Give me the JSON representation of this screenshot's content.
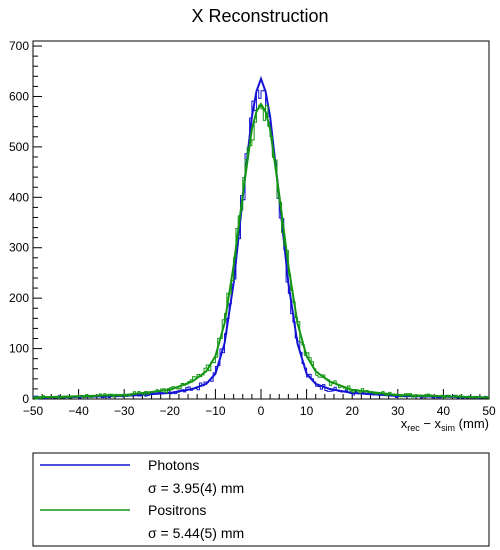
{
  "chart_data": {
    "type": "line",
    "title": "X Reconstruction",
    "xlabel_main": "x",
    "xlabel_sub1": "rec",
    "xlabel_dash": " − x",
    "xlabel_sub2": "sim",
    "xlabel_unit": " (mm)",
    "xlim": [
      -50,
      50
    ],
    "ylim": [
      0,
      710
    ],
    "xticks": [
      "−50",
      "−40",
      "−30",
      "−20",
      "−10",
      "0",
      "10",
      "20",
      "30",
      "40",
      "50"
    ],
    "xtick_values": [
      -50,
      -40,
      -30,
      -20,
      -10,
      0,
      10,
      20,
      30,
      40,
      50
    ],
    "yticks": [
      "0",
      "100",
      "200",
      "300",
      "400",
      "500",
      "600",
      "700"
    ],
    "ytick_values": [
      0,
      100,
      200,
      300,
      400,
      500,
      600,
      700
    ],
    "grid": false,
    "legend_position": "bottom",
    "series": [
      {
        "name": "Photons",
        "label": "σ = 3.95(4)  mm",
        "color": "#1414d2",
        "peak": 635,
        "center": 0,
        "shape": "narrow",
        "x": [
          -50,
          -30,
          -20,
          -15,
          -12,
          -10,
          -8,
          -6,
          -4,
          -2,
          -1,
          0,
          1,
          2,
          4,
          6,
          8,
          10,
          12,
          15,
          20,
          30,
          50
        ],
        "y": [
          3,
          6,
          12,
          20,
          30,
          50,
          110,
          230,
          400,
          560,
          610,
          635,
          610,
          560,
          400,
          230,
          110,
          50,
          30,
          20,
          12,
          6,
          3
        ]
      },
      {
        "name": "Positrons",
        "label": "σ = 5.44(5)  mm",
        "color": "#149614",
        "peak": 585,
        "center": 0,
        "shape": "wide",
        "x": [
          -50,
          -30,
          -20,
          -15,
          -12,
          -10,
          -8,
          -6,
          -4,
          -2,
          -1,
          0,
          1,
          2,
          4,
          6,
          8,
          10,
          12,
          15,
          20,
          30,
          50
        ],
        "y": [
          3,
          8,
          18,
          35,
          55,
          85,
          150,
          265,
          405,
          535,
          570,
          585,
          570,
          535,
          405,
          265,
          150,
          85,
          55,
          35,
          18,
          8,
          3
        ]
      }
    ]
  }
}
